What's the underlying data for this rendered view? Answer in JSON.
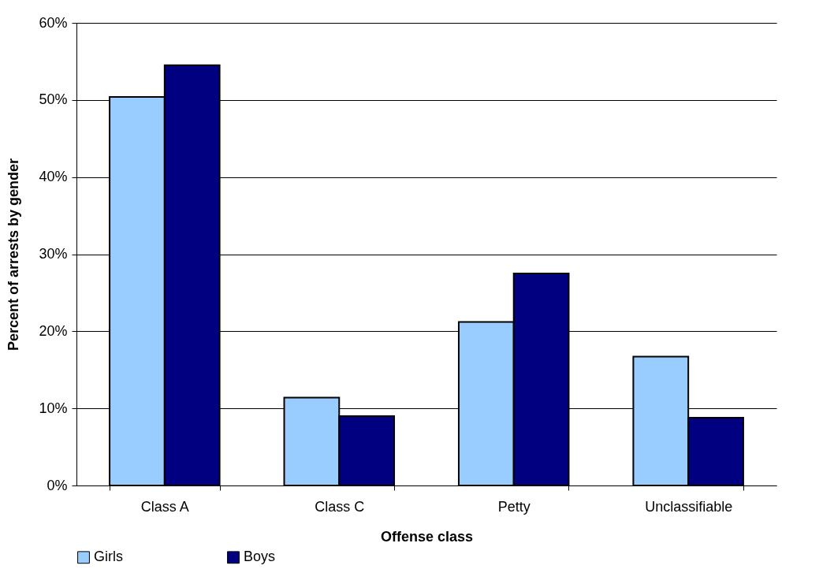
{
  "chart_data": {
    "type": "bar",
    "xlabel": "Offense class",
    "ylabel": "Percent of arrests by gender",
    "categories": [
      "Class A",
      "Class C",
      "Petty",
      "Unclassifiable"
    ],
    "series": [
      {
        "name": "Girls",
        "color": "#99ccff",
        "values": [
          50.4,
          11.4,
          21.2,
          16.7
        ]
      },
      {
        "name": "Boys",
        "color": "#000080",
        "values": [
          54.5,
          9.0,
          27.5,
          8.8
        ]
      }
    ],
    "ylim": [
      0,
      60
    ],
    "yticks": [
      {
        "value": 0,
        "label": "0%"
      },
      {
        "value": 10,
        "label": "10%"
      },
      {
        "value": 20,
        "label": "20%"
      },
      {
        "value": 30,
        "label": "30%"
      },
      {
        "value": 40,
        "label": "40%"
      },
      {
        "value": 50,
        "label": "50%"
      },
      {
        "value": 60,
        "label": "60%"
      }
    ],
    "grid": "y",
    "legend": "bottom"
  }
}
